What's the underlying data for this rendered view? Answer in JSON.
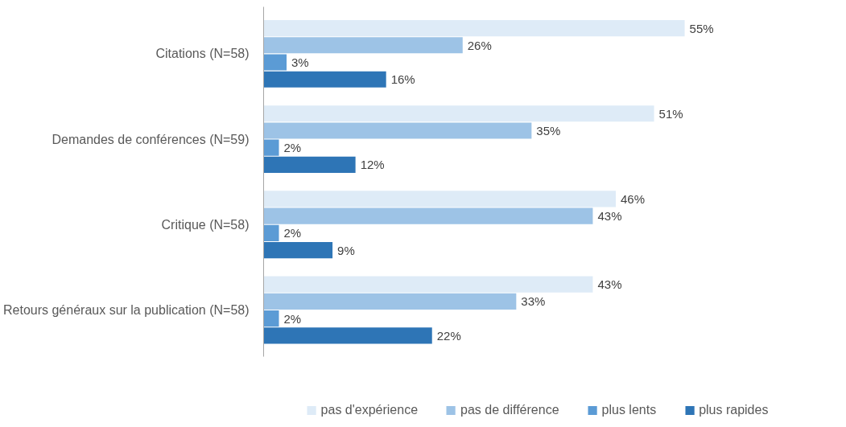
{
  "chart_data": {
    "type": "bar",
    "orientation": "horizontal",
    "legend": "bottom",
    "grid": false,
    "categories": [
      "Citations (N=58)",
      "Demandes de conférences (N=59)",
      "Critique (N=58)",
      "Retours généraux sur la publication (N=58)"
    ],
    "series": [
      {
        "name": "pas d'expérience",
        "color": "#deebf7",
        "values": [
          55,
          51,
          46,
          43
        ],
        "value_labels": [
          "55%",
          "51%",
          "46%",
          "43%"
        ]
      },
      {
        "name": "pas de différence",
        "color": "#9dc3e6",
        "values": [
          26,
          35,
          43,
          33
        ],
        "value_labels": [
          "26%",
          "35%",
          "43%",
          "33%"
        ]
      },
      {
        "name": "plus lents",
        "color": "#5b9bd5",
        "values": [
          3,
          2,
          2,
          2
        ],
        "value_labels": [
          "3%",
          "2%",
          "2%",
          "2%"
        ]
      },
      {
        "name": "plus rapides",
        "color": "#2e75b6",
        "values": [
          16,
          12,
          9,
          22
        ],
        "value_labels": [
          "16%",
          "12%",
          "9%",
          "22%"
        ]
      }
    ]
  }
}
